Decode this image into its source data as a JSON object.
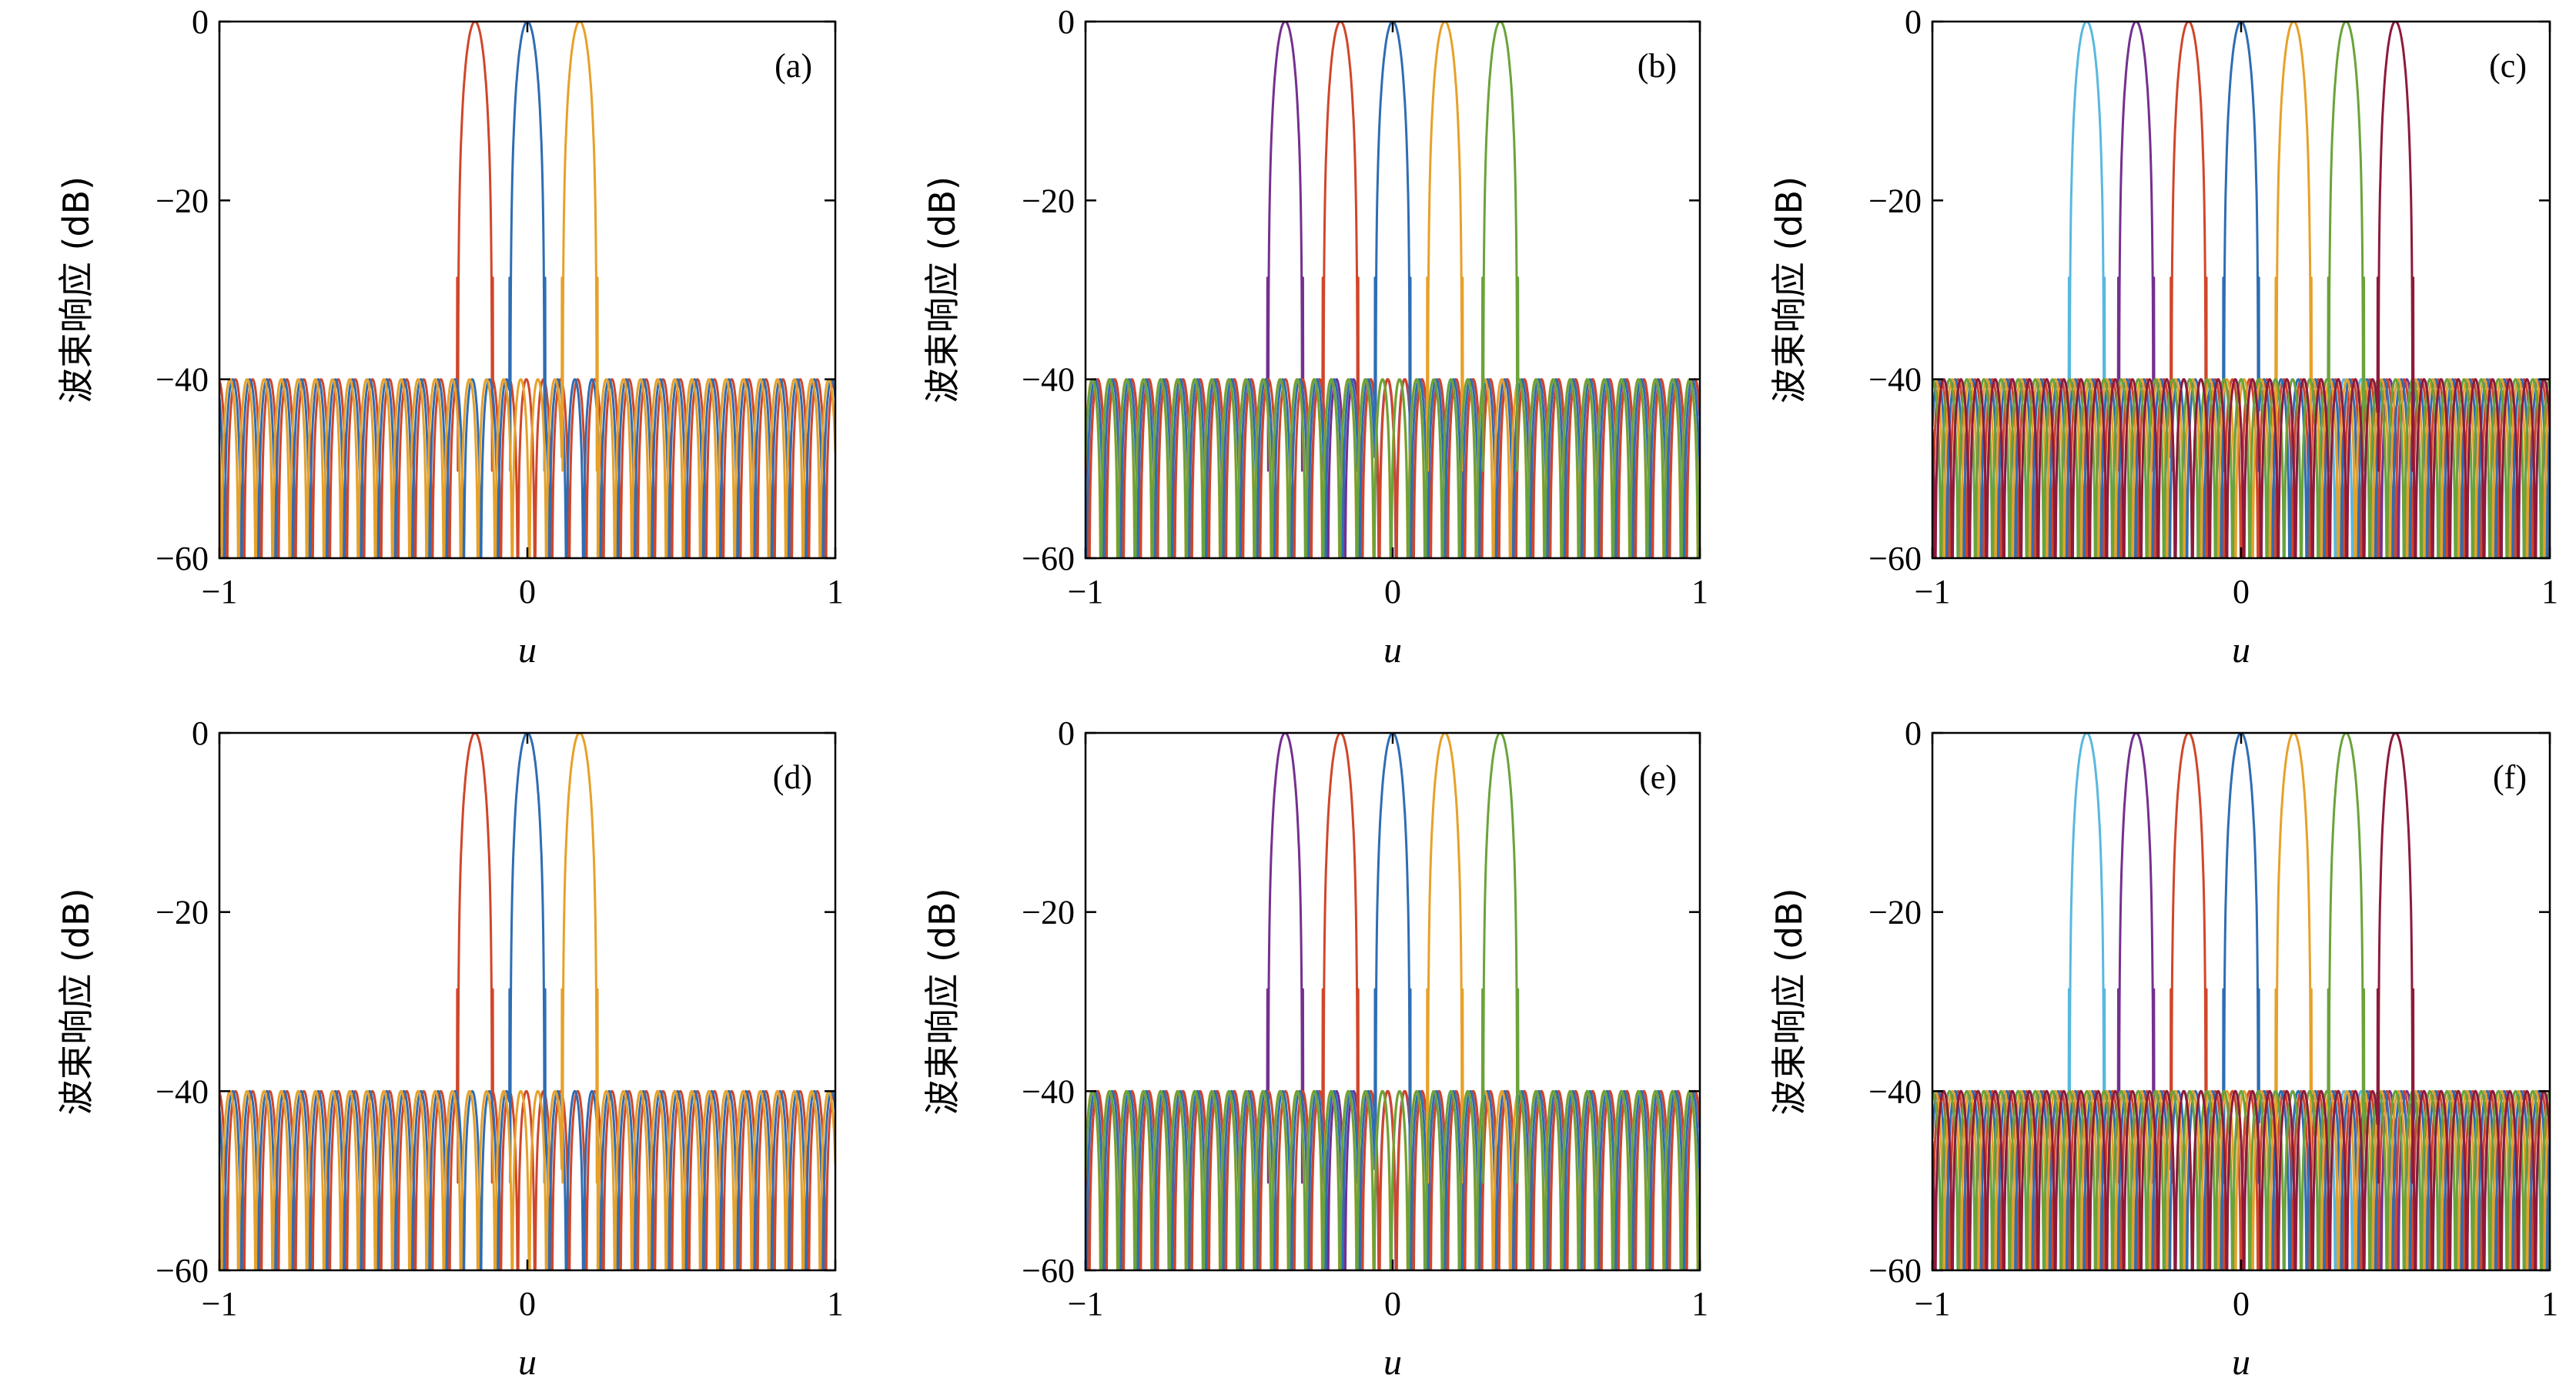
{
  "colors": {
    "blue": "#2e6db4",
    "red": "#d0462a",
    "yellow": "#e6a12a",
    "orange": "#e8781f",
    "purple": "#74308f",
    "green": "#6aa33a",
    "cyan": "#58b8df",
    "maroon": "#8e1a3a"
  },
  "chart_data": [
    {
      "type": "line",
      "panel_label": "(a)",
      "xlabel": "u",
      "ylabel": "波束响应 (dB)",
      "xlim": [
        -1,
        1
      ],
      "ylim": [
        -60,
        0
      ],
      "xticks": [
        "−1",
        "0",
        "1"
      ],
      "yticks": [
        "0",
        "−20",
        "−40",
        "−60"
      ],
      "grid": false,
      "sidelobe_level_db": -40,
      "series": [
        {
          "color": "#d0462a",
          "peak_u": -0.17,
          "peak_db": 0
        },
        {
          "color": "#2e6db4",
          "peak_u": 0.0,
          "peak_db": 0
        },
        {
          "color": "#e6a12a",
          "peak_u": 0.17,
          "peak_db": 0
        }
      ]
    },
    {
      "type": "line",
      "panel_label": "(b)",
      "xlabel": "u",
      "ylabel": "波束响应 (dB)",
      "xlim": [
        -1,
        1
      ],
      "ylim": [
        -60,
        0
      ],
      "xticks": [
        "−1",
        "0",
        "1"
      ],
      "yticks": [
        "0",
        "−20",
        "−40",
        "−60"
      ],
      "grid": false,
      "sidelobe_level_db": -40,
      "series": [
        {
          "color": "#74308f",
          "peak_u": -0.35,
          "peak_db": 0
        },
        {
          "color": "#d0462a",
          "peak_u": -0.17,
          "peak_db": 0
        },
        {
          "color": "#2e6db4",
          "peak_u": 0.0,
          "peak_db": 0
        },
        {
          "color": "#e6a12a",
          "peak_u": 0.17,
          "peak_db": 0
        },
        {
          "color": "#6aa33a",
          "peak_u": 0.35,
          "peak_db": 0
        }
      ]
    },
    {
      "type": "line",
      "panel_label": "(c)",
      "xlabel": "u",
      "ylabel": "波束响应 (dB)",
      "xlim": [
        -1,
        1
      ],
      "ylim": [
        -60,
        0
      ],
      "xticks": [
        "−1",
        "0",
        "1"
      ],
      "yticks": [
        "0",
        "−20",
        "−40",
        "−60"
      ],
      "grid": false,
      "sidelobe_level_db": -40,
      "series": [
        {
          "color": "#58b8df",
          "peak_u": -0.5,
          "peak_db": 0
        },
        {
          "color": "#74308f",
          "peak_u": -0.34,
          "peak_db": 0
        },
        {
          "color": "#d0462a",
          "peak_u": -0.17,
          "peak_db": 0
        },
        {
          "color": "#2e6db4",
          "peak_u": 0.0,
          "peak_db": 0
        },
        {
          "color": "#e6a12a",
          "peak_u": 0.17,
          "peak_db": 0
        },
        {
          "color": "#6aa33a",
          "peak_u": 0.34,
          "peak_db": 0
        },
        {
          "color": "#8e1a3a",
          "peak_u": 0.5,
          "peak_db": 0
        }
      ]
    },
    {
      "type": "line",
      "panel_label": "(d)",
      "xlabel": "u",
      "ylabel": "波束响应 (dB)",
      "xlim": [
        -1,
        1
      ],
      "ylim": [
        -60,
        0
      ],
      "xticks": [
        "−1",
        "0",
        "1"
      ],
      "yticks": [
        "0",
        "−20",
        "−40",
        "−60"
      ],
      "grid": false,
      "sidelobe_level_db": -40,
      "series": [
        {
          "color": "#d0462a",
          "peak_u": -0.17,
          "peak_db": 0
        },
        {
          "color": "#2e6db4",
          "peak_u": 0.0,
          "peak_db": 0
        },
        {
          "color": "#e6a12a",
          "peak_u": 0.17,
          "peak_db": 0
        }
      ]
    },
    {
      "type": "line",
      "panel_label": "(e)",
      "xlabel": "u",
      "ylabel": "波束响应 (dB)",
      "xlim": [
        -1,
        1
      ],
      "ylim": [
        -60,
        0
      ],
      "xticks": [
        "−1",
        "0",
        "1"
      ],
      "yticks": [
        "0",
        "−20",
        "−40",
        "−60"
      ],
      "grid": false,
      "sidelobe_level_db": -40,
      "series": [
        {
          "color": "#74308f",
          "peak_u": -0.35,
          "peak_db": 0
        },
        {
          "color": "#d0462a",
          "peak_u": -0.17,
          "peak_db": 0
        },
        {
          "color": "#2e6db4",
          "peak_u": 0.0,
          "peak_db": 0
        },
        {
          "color": "#e6a12a",
          "peak_u": 0.17,
          "peak_db": 0
        },
        {
          "color": "#6aa33a",
          "peak_u": 0.35,
          "peak_db": 0
        }
      ]
    },
    {
      "type": "line",
      "panel_label": "(f)",
      "xlabel": "u",
      "ylabel": "波束响应 (dB)",
      "xlim": [
        -1,
        1
      ],
      "ylim": [
        -60,
        0
      ],
      "xticks": [
        "−1",
        "0",
        "1"
      ],
      "yticks": [
        "0",
        "−20",
        "−40",
        "−60"
      ],
      "grid": false,
      "sidelobe_level_db": -40,
      "series": [
        {
          "color": "#58b8df",
          "peak_u": -0.5,
          "peak_db": 0
        },
        {
          "color": "#74308f",
          "peak_u": -0.34,
          "peak_db": 0
        },
        {
          "color": "#d0462a",
          "peak_u": -0.17,
          "peak_db": 0
        },
        {
          "color": "#2e6db4",
          "peak_u": 0.0,
          "peak_db": 0
        },
        {
          "color": "#e6a12a",
          "peak_u": 0.17,
          "peak_db": 0
        },
        {
          "color": "#6aa33a",
          "peak_u": 0.34,
          "peak_db": 0
        },
        {
          "color": "#8e1a3a",
          "peak_u": 0.5,
          "peak_db": 0
        }
      ]
    }
  ]
}
